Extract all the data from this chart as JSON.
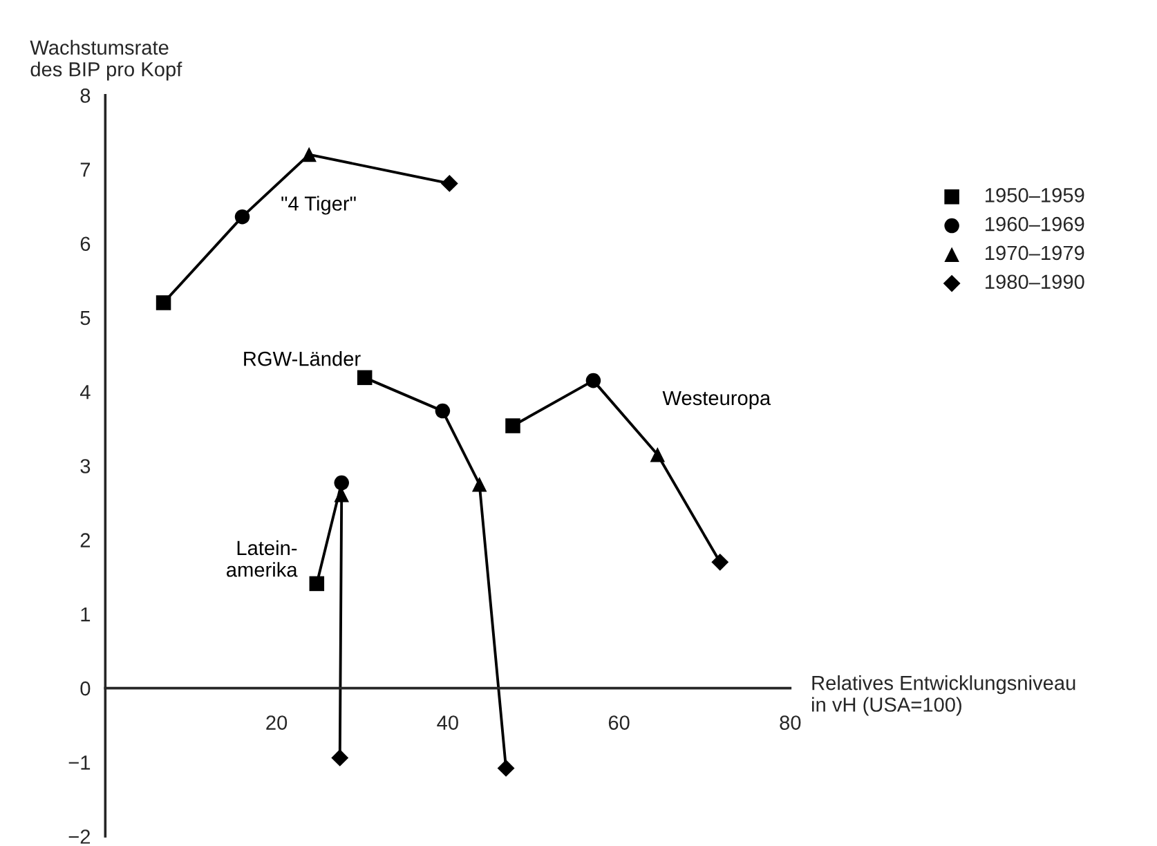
{
  "chart_data": {
    "type": "line",
    "ylabel": "Wachstumsrate\ndes BIP pro Kopf",
    "xlabel": "Relatives Entwicklungsniveau\nin vH (USA=100)",
    "xlim": [
      0,
      80
    ],
    "xticks": [
      20,
      40,
      60,
      80
    ],
    "ylim": [
      -2,
      8
    ],
    "yticks": [
      {
        "value": -2,
        "label": "−2"
      },
      {
        "value": -1,
        "label": "−1"
      },
      0,
      1,
      2,
      3,
      4,
      5,
      6,
      7,
      8
    ],
    "grid": false,
    "legend": "right",
    "series": [
      {
        "name": "\"4 Tiger\"",
        "color": "#000000",
        "marker": "none",
        "x": [
          6.8,
          16.0,
          23.8,
          40.2
        ],
        "values": [
          5.2,
          6.36,
          7.2,
          6.81
        ]
      },
      {
        "name": "RGW-Länder",
        "color": "#000000",
        "marker": "none",
        "x": [
          30.3,
          39.4,
          43.7,
          46.8
        ],
        "values": [
          4.19,
          3.74,
          2.75,
          -1.08
        ]
      },
      {
        "name": "Westeuropa",
        "color": "#000000",
        "marker": "none",
        "x": [
          47.6,
          57.0,
          64.5,
          71.8
        ],
        "values": [
          3.54,
          4.15,
          3.15,
          1.7
        ]
      },
      {
        "name": "Latein-\namerika",
        "color": "#000000",
        "marker": "none",
        "x": [
          24.7,
          27.6,
          27.6,
          27.4
        ],
        "values": [
          1.41,
          2.77,
          2.61,
          -0.94
        ]
      },
      {
        "name": "1950–1959",
        "type": "scatter",
        "color": "#000000",
        "marker": "square",
        "x": [
          6.8,
          30.3,
          47.6,
          24.7
        ],
        "values": [
          5.2,
          4.19,
          3.54,
          1.41
        ]
      },
      {
        "name": "1960–1969",
        "type": "scatter",
        "color": "#000000",
        "marker": "circle",
        "x": [
          16.0,
          39.4,
          57.0,
          27.6
        ],
        "values": [
          6.36,
          3.74,
          4.15,
          2.77
        ]
      },
      {
        "name": "1970–1979",
        "type": "scatter",
        "color": "#000000",
        "marker": "triangle",
        "x": [
          23.8,
          43.7,
          64.5,
          27.6
        ],
        "values": [
          7.2,
          2.75,
          3.15,
          2.61
        ]
      },
      {
        "name": "1980–1990",
        "type": "scatter",
        "color": "#000000",
        "marker": "diamond",
        "x": [
          40.2,
          46.8,
          71.8,
          27.4
        ],
        "values": [
          6.81,
          -1.08,
          1.7,
          -0.94
        ]
      }
    ]
  }
}
